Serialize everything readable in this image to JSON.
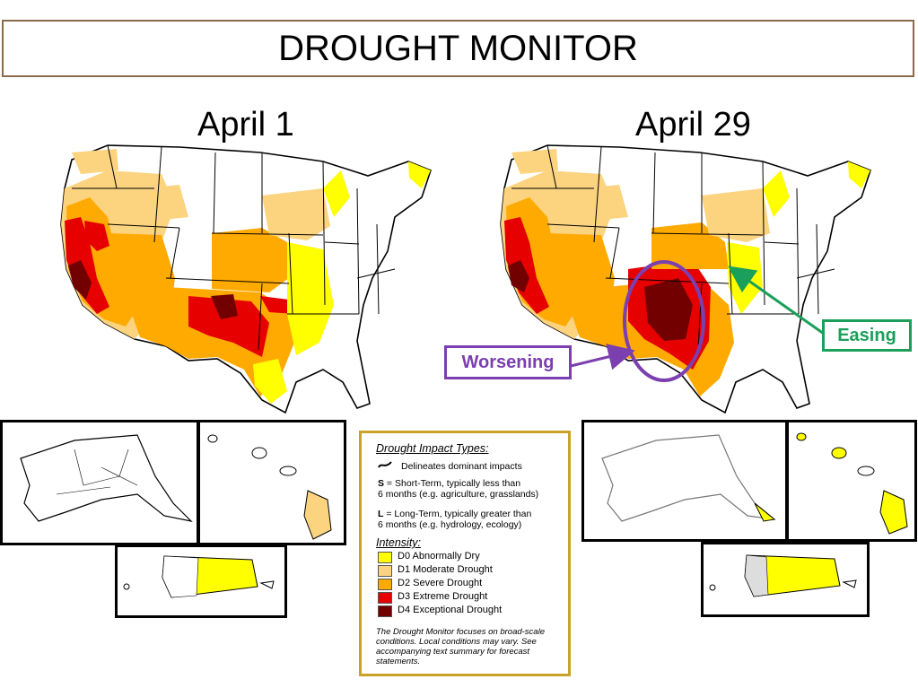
{
  "header": {
    "title": "DROUGHT MONITOR"
  },
  "maps": {
    "left": {
      "date": "April 1"
    },
    "right": {
      "date": "April 29"
    }
  },
  "callouts": {
    "easing": "Easing",
    "worsening": "Worsening"
  },
  "legend": {
    "impact_header": "Drought Impact Types:",
    "impact_line": "Delineates dominant impacts",
    "short_term_letter": "S",
    "short_term_text_1": " = Short-Term, typically less than",
    "short_term_text_2": "6 months (e.g. agriculture, grasslands)",
    "long_term_letter": "L",
    "long_term_text_1": " = Long-Term, typically greater than",
    "long_term_text_2": "6 months (e.g. hydrology, ecology)",
    "intensity_header": "Intensity:",
    "levels": [
      {
        "label": "D0 Abnormally Dry",
        "color": "#ffff00"
      },
      {
        "label": "D1 Moderate Drought",
        "color": "#fcd37f"
      },
      {
        "label": "D2 Severe Drought",
        "color": "#ffaa00"
      },
      {
        "label": "D3 Extreme Drought",
        "color": "#e60000"
      },
      {
        "label": "D4 Exceptional Drought",
        "color": "#730000"
      }
    ],
    "note": "The Drought Monitor focuses on broad-scale conditions. Local conditions may vary. See accompanying text summary for forecast statements."
  },
  "colors": {
    "title_border": "#8b6a4a",
    "legend_border": "#c9a227",
    "easing": "#1aa05a",
    "worsening": "#7b3fb0"
  }
}
